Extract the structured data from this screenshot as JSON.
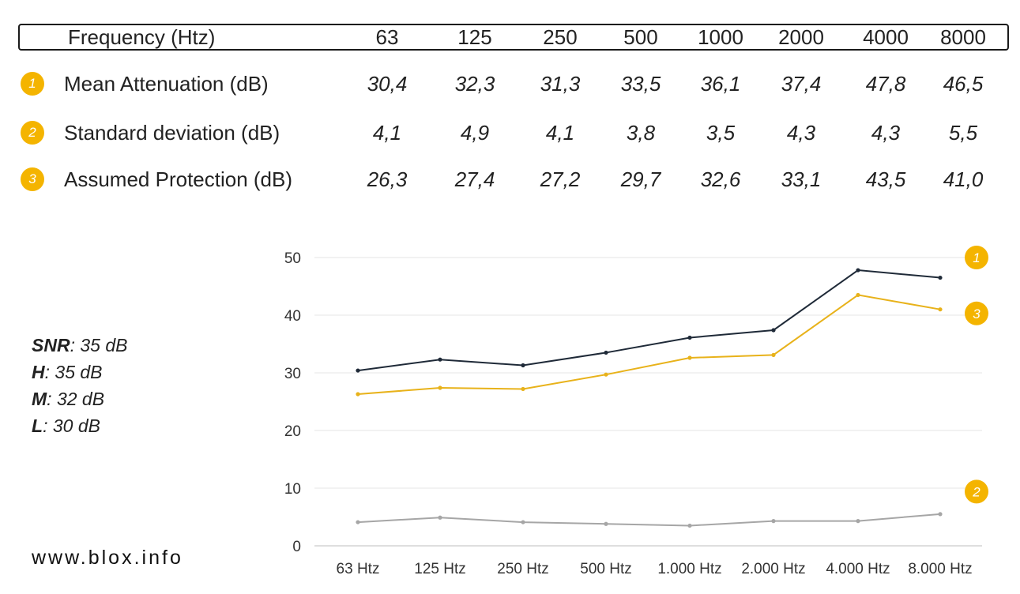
{
  "table": {
    "header_label": "Frequency (Htz)",
    "frequencies": [
      "63",
      "125",
      "250",
      "500",
      "1000",
      "2000",
      "4000",
      "8000"
    ],
    "rows": [
      {
        "badge": "1",
        "label": "Mean Attenuation (dB)",
        "values": [
          "30,4",
          "32,3",
          "31,3",
          "33,5",
          "36,1",
          "37,4",
          "47,8",
          "46,5"
        ]
      },
      {
        "badge": "2",
        "label": "Standard deviation (dB)",
        "values": [
          "4,1",
          "4,9",
          "4,1",
          "3,8",
          "3,5",
          "4,3",
          "4,3",
          "5,5"
        ]
      },
      {
        "badge": "3",
        "label": "Assumed Protection (dB)",
        "values": [
          "26,3",
          "27,4",
          "27,2",
          "29,7",
          "32,6",
          "33,1",
          "43,5",
          "41,0"
        ]
      }
    ]
  },
  "ratings": [
    {
      "key": "SNR",
      "value": ": 35 dB"
    },
    {
      "key": "H",
      "value": ": 35 dB"
    },
    {
      "key": "M",
      "value": ": 32 dB"
    },
    {
      "key": "L",
      "value": ": 30 dB"
    }
  ],
  "site": "www.blox.info",
  "chart_data": {
    "type": "line",
    "categories": [
      "63 Htz",
      "125 Htz",
      "250 Htz",
      "500 Htz",
      "1.000 Htz",
      "2.000 Htz",
      "4.000 Htz",
      "8.000 Htz"
    ],
    "ylim": [
      0,
      50
    ],
    "yticks": [
      0,
      10,
      20,
      30,
      40,
      50
    ],
    "grid": true,
    "series": [
      {
        "name": "1",
        "color": "#1f2a38",
        "values": [
          30.4,
          32.3,
          31.3,
          33.5,
          36.1,
          37.4,
          47.8,
          46.5
        ]
      },
      {
        "name": "2",
        "color": "#a6a6a6",
        "values": [
          4.1,
          4.9,
          4.1,
          3.8,
          3.5,
          4.3,
          4.3,
          5.5
        ]
      },
      {
        "name": "3",
        "color": "#e8b21a",
        "values": [
          26.3,
          27.4,
          27.2,
          29.7,
          32.6,
          33.1,
          43.5,
          41.0
        ]
      }
    ],
    "accent": "#f4b400"
  }
}
